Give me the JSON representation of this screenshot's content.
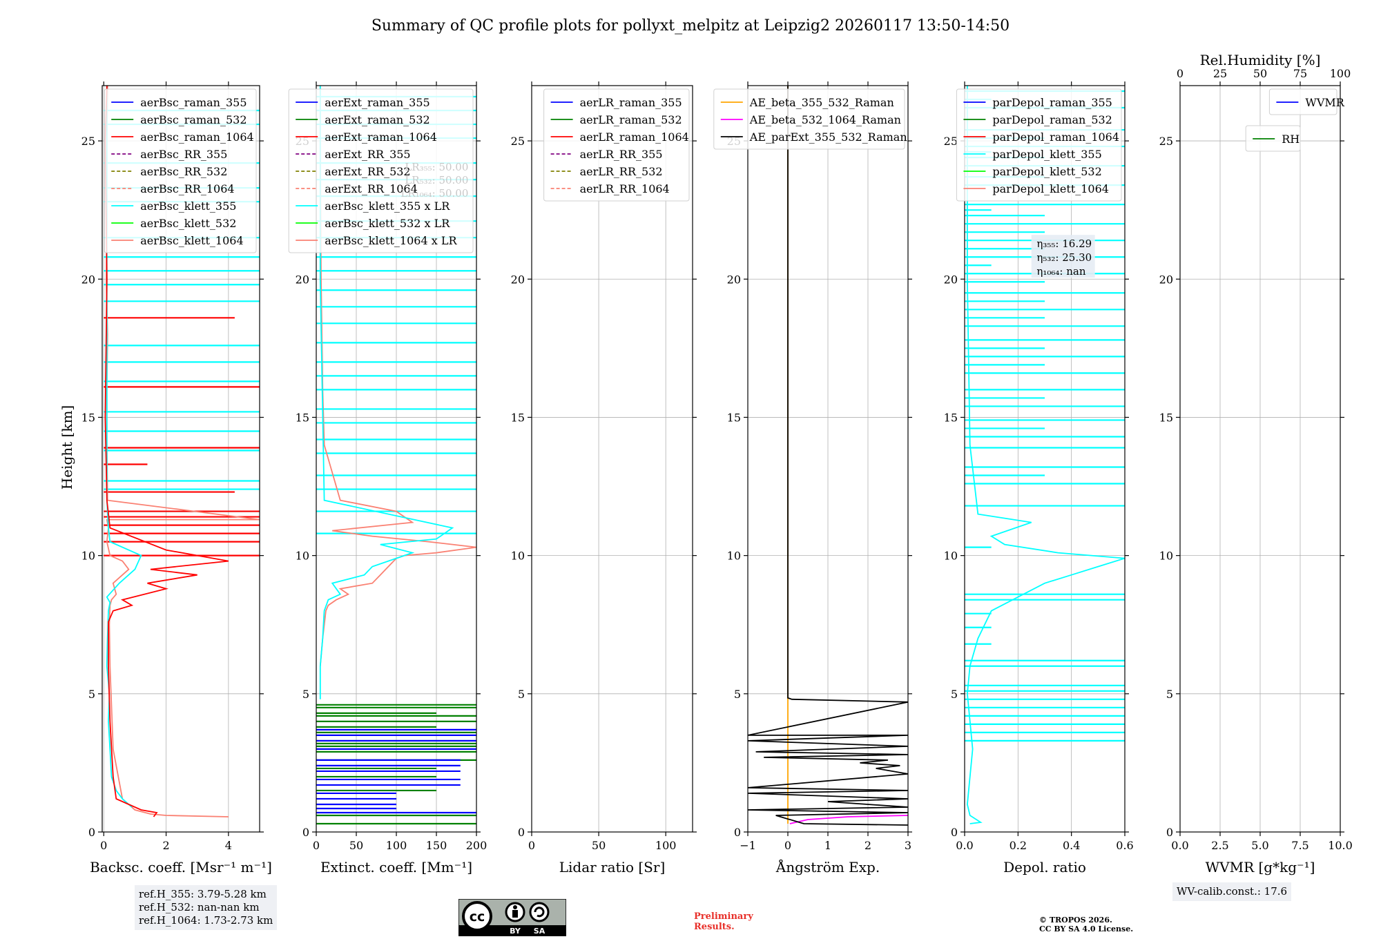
{
  "title": "Summary of QC profile plots for pollyxt_melpitz at Leipzig2 20260117 13:50-14:50",
  "ylabel": "Height [km]",
  "ylim": [
    0,
    27
  ],
  "yticks": [
    0,
    5,
    10,
    15,
    20,
    25
  ],
  "colors": {
    "blue": "#0000ff",
    "green": "#008000",
    "red": "#ff0000",
    "purple": "#800080",
    "olive": "#808000",
    "salmon": "#fa8072",
    "cyan": "#00ffff",
    "lime": "#00ff00",
    "orange": "#ffa500",
    "magenta": "#ff00ff",
    "black": "#000000"
  },
  "chart_data": [
    {
      "type": "line",
      "id": "backscatter",
      "xlabel": "Backsc. coeff. [Msr⁻¹ m⁻¹]",
      "xlim": [
        -0.05,
        5
      ],
      "xticks": [
        "0",
        "2",
        "4"
      ],
      "xtick_values": [
        0,
        2,
        4
      ],
      "legend_loc": "upper-right",
      "legend": [
        {
          "label": "aerBsc_raman_355",
          "color": "#0000ff",
          "dash": false
        },
        {
          "label": "aerBsc_raman_532",
          "color": "#008000",
          "dash": false
        },
        {
          "label": "aerBsc_raman_1064",
          "color": "#ff0000",
          "dash": false
        },
        {
          "label": "aerBsc_RR_355",
          "color": "#800080",
          "dash": true
        },
        {
          "label": "aerBsc_RR_532",
          "color": "#808000",
          "dash": true
        },
        {
          "label": "aerBsc_RR_1064",
          "color": "#fa8072",
          "dash": true
        },
        {
          "label": "aerBsc_klett_355",
          "color": "#00ffff",
          "dash": false
        },
        {
          "label": "aerBsc_klett_532",
          "color": "#00ff00",
          "dash": false
        },
        {
          "label": "aerBsc_klett_1064",
          "color": "#fa8072",
          "dash": false
        }
      ],
      "series": [
        {
          "name": "aerBsc_klett_1064",
          "color": "#fa8072",
          "x": [
            4.0,
            2.0,
            1.5,
            1.0,
            0.6,
            0.3,
            0.2,
            0.18,
            0.2,
            0.25,
            0.4,
            0.3,
            0.8,
            0.6,
            0.2,
            0.1,
            0.15,
            0.1,
            5,
            0.12,
            0.1,
            0.1,
            0.12,
            0.08,
            0.1,
            0.1,
            0.12
          ],
          "y": [
            0.55,
            0.6,
            0.65,
            0.8,
            1.2,
            3,
            6,
            7.5,
            8.2,
            8.4,
            8.6,
            9.0,
            9.5,
            9.8,
            10.0,
            10.5,
            11.0,
            11.3,
            11.3,
            12,
            14,
            16,
            18,
            20,
            22,
            25,
            27
          ]
        },
        {
          "name": "aerBsc_klett_355",
          "color": "#00ffff",
          "x": [
            0.9,
            0.6,
            0.4,
            0.25,
            0.2,
            0.15,
            0.18,
            0.1,
            0.12,
            0.15,
            0.2,
            0.1,
            0.5,
            1.0,
            1.2,
            0.2,
            0.15,
            0.1,
            0.1,
            0.1,
            0.1,
            0.1
          ],
          "y": [
            0.9,
            1.2,
            1.5,
            2,
            3,
            4,
            5,
            6,
            7,
            8,
            8.3,
            8.5,
            9,
            9.5,
            10,
            10.5,
            11,
            12,
            15,
            20,
            25,
            27
          ]
        },
        {
          "name": "aerBsc_raman_1064",
          "color": "#ff0000",
          "x": [
            1.6,
            1.7,
            1.2,
            0.8,
            0.4,
            0.3,
            0.2,
            0.15,
            0.15,
            0.3,
            0.9,
            0.6,
            2.0,
            1.4,
            3.0,
            1.5,
            4.0,
            2.0,
            0.2,
            0.1,
            0.05,
            0.1,
            0.05,
            0.1
          ],
          "y": [
            0.55,
            0.7,
            0.8,
            1.0,
            1.2,
            2,
            4,
            6,
            7.6,
            8.0,
            8.2,
            8.4,
            8.8,
            9.0,
            9.3,
            9.5,
            9.8,
            10.2,
            11,
            12,
            15,
            20,
            25,
            27
          ]
        }
      ],
      "hlines": [
        {
          "color": "#00ffff",
          "x1": 5,
          "heights": [
            19.2,
            19.8,
            20.3,
            20.8,
            21.5,
            22.8,
            23.3,
            24.2,
            25.6,
            26.1,
            17.6,
            17.0,
            16.3,
            15.2,
            14.5,
            13.8,
            12.7,
            12.4,
            11.6
          ]
        },
        {
          "color": "#ff0000",
          "x1": 5,
          "heights": [
            10.0,
            10.5,
            10.8,
            11.1,
            11.4,
            11.6,
            13.9,
            16.1
          ]
        },
        {
          "color": "#ff0000",
          "x1": 4.2,
          "heights": [
            18.6,
            12.3
          ]
        },
        {
          "color": "#ff0000",
          "x1": 1.4,
          "heights": [
            13.3
          ]
        }
      ]
    },
    {
      "type": "line",
      "id": "extinction",
      "xlabel": "Extinct. coeff. [Mm⁻¹]",
      "xlim": [
        0,
        200
      ],
      "xticks": [
        "0",
        "50",
        "100",
        "150",
        "200"
      ],
      "xtick_values": [
        0,
        50,
        100,
        150,
        200
      ],
      "legend_loc": "upper-right",
      "legend": [
        {
          "label": "aerExt_raman_355",
          "color": "#0000ff",
          "dash": false
        },
        {
          "label": "aerExt_raman_532",
          "color": "#008000",
          "dash": false
        },
        {
          "label": "aerExt_raman_1064",
          "color": "#ff0000",
          "dash": false
        },
        {
          "label": "aerExt_RR_355",
          "color": "#800080",
          "dash": true
        },
        {
          "label": "aerExt_RR_532",
          "color": "#808000",
          "dash": true
        },
        {
          "label": "aerExt_RR_1064",
          "color": "#fa8072",
          "dash": true
        },
        {
          "label": "aerBsc_klett_355 x LR",
          "color": "#00ffff",
          "dash": false
        },
        {
          "label": "aerBsc_klett_532 x LR",
          "color": "#00ff00",
          "dash": false
        },
        {
          "label": "aerBsc_klett_1064 x LR",
          "color": "#fa8072",
          "dash": false
        }
      ],
      "lr_notes": [
        "LR₃₅₅: 50.00",
        "LR₅₃₂: 50.00",
        "LR₁₀₆₄: 50.00"
      ],
      "series": [
        {
          "name": "aerBsc_klett_1064 x LR",
          "color": "#fa8072",
          "x": [
            5,
            8,
            10,
            12,
            15,
            25,
            40,
            30,
            70,
            80,
            90,
            100,
            110,
            150,
            200,
            140,
            70,
            20,
            120,
            100,
            30,
            10,
            8,
            6,
            5,
            5
          ],
          "y": [
            6,
            7,
            7.5,
            8.0,
            8.2,
            8.4,
            8.6,
            8.8,
            9.0,
            9.3,
            9.6,
            9.9,
            10.0,
            10.1,
            10.3,
            10.5,
            10.7,
            10.9,
            11.2,
            11.6,
            12,
            14,
            16,
            20,
            25,
            27
          ]
        },
        {
          "name": "aerBsc_klett_355 x LR",
          "color": "#00ffff",
          "x": [
            5,
            5,
            8,
            10,
            15,
            30,
            20,
            60,
            70,
            100,
            120,
            80,
            150,
            170,
            10,
            5,
            5
          ],
          "y": [
            4.8,
            6,
            7,
            8,
            8.4,
            8.6,
            9,
            9.3,
            9.6,
            9.9,
            10.1,
            10.4,
            10.6,
            11,
            12,
            20,
            27
          ]
        }
      ],
      "hlines": [
        {
          "color": "#00ffff",
          "x1": 200,
          "heights": [
            10.8,
            11.6,
            12.4,
            12.9,
            13.7,
            14.2,
            14.8,
            15.3,
            16.0,
            16.5,
            17.0,
            17.7,
            18.4,
            19.0,
            19.6,
            20.3,
            20.8,
            21.5,
            22.1,
            23.0,
            23.6,
            24.2,
            25.1,
            25.6,
            26.1,
            26.6
          ]
        },
        {
          "color": "#008000",
          "x1": 200,
          "heights": [
            4.6,
            4.5,
            4.2,
            4.0,
            3.6,
            3.2,
            3.1,
            2.9,
            2.6
          ]
        },
        {
          "color": "#008000",
          "x1": 150,
          "heights": [
            4.3,
            3.8,
            2.3,
            2.0,
            1.5
          ]
        },
        {
          "color": "#0000ff",
          "x1": 200,
          "heights": [
            3.7,
            3.5,
            3.3,
            3.0,
            0.7
          ]
        },
        {
          "color": "#0000ff",
          "x1": 180,
          "heights": [
            2.6,
            2.4,
            2.2,
            1.9,
            1.7
          ]
        },
        {
          "color": "#0000ff",
          "x1": 100,
          "heights": [
            1.4,
            1.2,
            1.0,
            0.85
          ]
        },
        {
          "color": "#008000",
          "x1": 200,
          "heights": [
            0.6,
            0.3
          ]
        }
      ]
    },
    {
      "type": "line",
      "id": "lidar_ratio",
      "xlabel": "Lidar ratio [Sr]",
      "xlim": [
        0,
        120
      ],
      "xticks": [
        "0",
        "50",
        "100"
      ],
      "xtick_values": [
        0,
        50,
        100
      ],
      "legend_loc": "upper-right",
      "legend": [
        {
          "label": "aerLR_raman_355",
          "color": "#0000ff",
          "dash": false
        },
        {
          "label": "aerLR_raman_532",
          "color": "#008000",
          "dash": false
        },
        {
          "label": "aerLR_raman_1064",
          "color": "#ff0000",
          "dash": false
        },
        {
          "label": "aerLR_RR_355",
          "color": "#800080",
          "dash": true
        },
        {
          "label": "aerLR_RR_532",
          "color": "#808000",
          "dash": true
        },
        {
          "label": "aerLR_RR_1064",
          "color": "#fa8072",
          "dash": true
        }
      ],
      "series": [],
      "hlines": []
    },
    {
      "type": "line",
      "id": "angstrom",
      "xlabel": "Ångström Exp.",
      "xlim": [
        -1,
        3
      ],
      "xticks": [
        "−1",
        "0",
        "1",
        "2",
        "3"
      ],
      "xtick_values": [
        -1,
        0,
        1,
        2,
        3
      ],
      "legend_loc": "upper-right",
      "legend": [
        {
          "label": "AE_beta_355_532_Raman",
          "color": "#ffa500",
          "dash": false
        },
        {
          "label": "AE_beta_532_1064_Raman",
          "color": "#ff00ff",
          "dash": false
        },
        {
          "label": "AE_parExt_355_532_Raman",
          "color": "#000000",
          "dash": false
        }
      ],
      "series": [
        {
          "name": "AE_beta_355_532_Raman",
          "color": "#ffa500",
          "x": [
            0,
            0,
            0
          ],
          "y": [
            0.3,
            15,
            27
          ]
        },
        {
          "name": "AE_beta_532_1064_Raman",
          "color": "#ff00ff",
          "x": [
            0.05,
            0.5,
            1.5,
            3
          ],
          "y": [
            0.3,
            0.45,
            0.55,
            0.6
          ]
        },
        {
          "name": "AE_parExt_355_532_Raman",
          "color": "#000000",
          "x": [
            0,
            0,
            0.1,
            3,
            -1,
            3,
            -1,
            3,
            -0.8,
            3,
            -0.6,
            2.5,
            1.8,
            2.8,
            2.2,
            3,
            -1,
            3,
            -1,
            3,
            1.0,
            3,
            -1,
            3,
            -0.3,
            0.4,
            3
          ],
          "y": [
            27,
            4.85,
            4.8,
            4.7,
            3.5,
            3.5,
            3.3,
            3.1,
            2.9,
            2.8,
            2.7,
            2.6,
            2.5,
            2.4,
            2.3,
            2.1,
            1.6,
            1.5,
            1.4,
            1.2,
            1.1,
            0.9,
            0.8,
            0.7,
            0.6,
            0.3,
            0.25
          ]
        }
      ],
      "hlines": []
    },
    {
      "type": "line",
      "id": "depol",
      "xlabel": "Depol. ratio",
      "xlim": [
        0,
        0.6
      ],
      "xticks": [
        "0.0",
        "0.2",
        "0.4",
        "0.6"
      ],
      "xtick_values": [
        0,
        0.2,
        0.4,
        0.6
      ],
      "legend_loc": "upper-right",
      "legend": [
        {
          "label": "parDepol_raman_355",
          "color": "#0000ff",
          "dash": false
        },
        {
          "label": "parDepol_raman_532",
          "color": "#008000",
          "dash": false
        },
        {
          "label": "parDepol_raman_1064",
          "color": "#ff0000",
          "dash": false
        },
        {
          "label": "parDepol_klett_355",
          "color": "#00ffff",
          "dash": false
        },
        {
          "label": "parDepol_klett_532",
          "color": "#00ff00",
          "dash": false
        },
        {
          "label": "parDepol_klett_1064",
          "color": "#fa8072",
          "dash": false
        }
      ],
      "eta_notes": [
        "η₃₅₅: 16.29",
        "η₅₃₂: 25.30",
        "η₁₀₆₄: nan"
      ],
      "series": [
        {
          "name": "parDepol_klett_355",
          "color": "#00ffff",
          "x": [
            0.02,
            0.06,
            0.02,
            0.01,
            0.03,
            0.01,
            0.02,
            0.05,
            0.1,
            0.2,
            0.3,
            0.4,
            0.5,
            0.6,
            0.35,
            0.15,
            0.1,
            0.25,
            0.05,
            0.02,
            0.01,
            0.01
          ],
          "y": [
            0.3,
            0.35,
            0.6,
            1,
            3,
            5,
            6,
            7,
            8,
            8.5,
            9,
            9.3,
            9.6,
            9.9,
            10.1,
            10.4,
            10.7,
            11.2,
            11.5,
            14,
            20,
            27
          ]
        }
      ],
      "hlines": [
        {
          "color": "#00ffff",
          "x1": 0.6,
          "heights": [
            3.3,
            3.6,
            3.9,
            4.2,
            4.5,
            4.8,
            5.1,
            5.3,
            6.0,
            6.2,
            8.4,
            8.6,
            11.8,
            12.6,
            13.2,
            13.9,
            14.3,
            14.9,
            15.4,
            16.0,
            16.6,
            17.2,
            17.8,
            18.3,
            18.9,
            19.5,
            20.2,
            20.8,
            21.4,
            22.0,
            22.7,
            23.4,
            24.1,
            24.8,
            25.4,
            26.2,
            26.8
          ]
        },
        {
          "color": "#00ffff",
          "x1": 0.3,
          "heights": [
            12.9,
            14.6,
            15.7,
            16.9,
            17.5,
            18.6,
            19.2,
            19.9,
            21.1,
            21.7,
            22.3,
            23.7,
            24.4,
            25.1
          ]
        },
        {
          "color": "#00ffff",
          "x1": 0.1,
          "heights": [
            6.8,
            7.4,
            7.9,
            10.3,
            20.5,
            22.5,
            24.6,
            26.5
          ]
        }
      ]
    },
    {
      "type": "line",
      "id": "wv",
      "xlabel": "WVMR [g*kg⁻¹]",
      "xlim": [
        0,
        10
      ],
      "xticks": [
        "0.0",
        "2.5",
        "5.0",
        "7.5",
        "10.0"
      ],
      "xtick_values": [
        0,
        2.5,
        5,
        7.5,
        10
      ],
      "top_xlabel": "Rel.Humidity [%]",
      "top_xticks": [
        "0",
        "25",
        "50",
        "75",
        "100"
      ],
      "legend_loc": "upper-right",
      "legend": [
        {
          "label": "WVMR",
          "color": "#0000ff",
          "dash": false
        }
      ],
      "legend2": [
        {
          "label": "RH",
          "color": "#008000",
          "dash": false
        }
      ],
      "series": [],
      "hlines": []
    }
  ],
  "footer": {
    "refh": [
      "ref.H_355: 3.79-5.28 km",
      "ref.H_532: nan-nan km",
      "ref.H_1064: 1.73-2.73 km"
    ],
    "wv_calib": "WV-calib.const.: 17.6",
    "license_badge": [
      "cc",
      "BY",
      "SA"
    ],
    "preliminary": [
      "Preliminary",
      "Results."
    ],
    "copyright": [
      "© TROPOS 2026.",
      "CC BY SA 4.0 License."
    ]
  }
}
